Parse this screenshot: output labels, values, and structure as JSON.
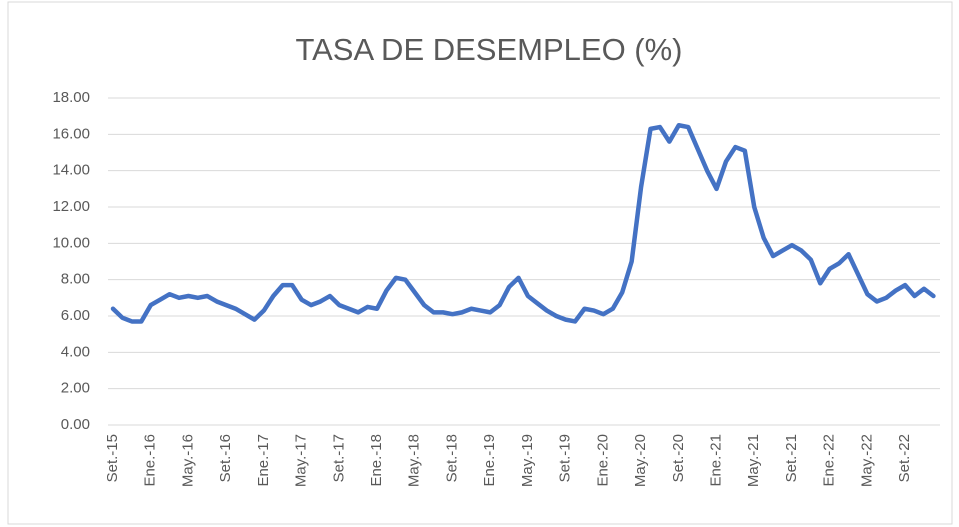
{
  "chart_data": {
    "type": "line",
    "title": "TASA DE DESEMPLEO (%)",
    "categories": [
      "Set.-15",
      null,
      null,
      null,
      "Ene.-16",
      null,
      null,
      null,
      "May.-16",
      null,
      null,
      null,
      "Set.-16",
      null,
      null,
      null,
      "Ene.-17",
      null,
      null,
      null,
      "May.-17",
      null,
      null,
      null,
      "Set.-17",
      null,
      null,
      null,
      "Ene.-18",
      null,
      null,
      null,
      "May.-18",
      null,
      null,
      null,
      "Set.-18",
      null,
      null,
      null,
      "Ene.-19",
      null,
      null,
      null,
      "May.-19",
      null,
      null,
      null,
      "Set.-19",
      null,
      null,
      null,
      "Ene.-20",
      null,
      null,
      null,
      "May.-20",
      null,
      null,
      null,
      "Set.-20",
      null,
      null,
      null,
      "Ene.-21",
      null,
      null,
      null,
      "May.-21",
      null,
      null,
      null,
      "Set.-21",
      null,
      null,
      null,
      "Ene.-22",
      null,
      null,
      null,
      "May.-22",
      null,
      null,
      null,
      "Set.-22",
      null,
      null,
      null
    ],
    "series": [
      {
        "name": "Tasa de desempleo",
        "color": "#4472c4",
        "values": [
          6.4,
          5.9,
          5.7,
          5.7,
          6.6,
          6.9,
          7.2,
          7.0,
          7.1,
          7.0,
          7.1,
          6.8,
          6.6,
          6.4,
          6.1,
          5.8,
          6.3,
          7.1,
          7.7,
          7.7,
          6.9,
          6.6,
          6.8,
          7.1,
          6.6,
          6.4,
          6.2,
          6.5,
          6.4,
          7.4,
          8.1,
          8.0,
          7.3,
          6.6,
          6.2,
          6.2,
          6.1,
          6.2,
          6.4,
          6.3,
          6.2,
          6.6,
          7.6,
          8.1,
          7.1,
          6.7,
          6.3,
          6.0,
          5.8,
          5.7,
          6.4,
          6.3,
          6.1,
          6.4,
          7.3,
          9.0,
          13.1,
          16.3,
          16.4,
          15.6,
          16.5,
          16.4,
          15.2,
          14.0,
          13.0,
          14.5,
          15.3,
          15.1,
          12.0,
          10.3,
          9.3,
          9.6,
          9.9,
          9.6,
          9.1,
          7.8,
          8.6,
          8.9,
          9.4,
          8.3,
          7.2,
          6.8,
          7.0,
          7.4,
          7.7,
          7.1,
          7.5,
          7.1
        ]
      }
    ],
    "ylim": [
      0,
      18
    ],
    "yticks": [
      {
        "value": 0,
        "label": "0.00"
      },
      {
        "value": 2,
        "label": "2.00"
      },
      {
        "value": 4,
        "label": "4.00"
      },
      {
        "value": 6,
        "label": "6.00"
      },
      {
        "value": 8,
        "label": "8.00"
      },
      {
        "value": 10,
        "label": "10.00"
      },
      {
        "value": 12,
        "label": "12.00"
      },
      {
        "value": 14,
        "label": "14.00"
      },
      {
        "value": 16,
        "label": "16.00"
      },
      {
        "value": 18,
        "label": "18.00"
      }
    ],
    "grid": true
  }
}
